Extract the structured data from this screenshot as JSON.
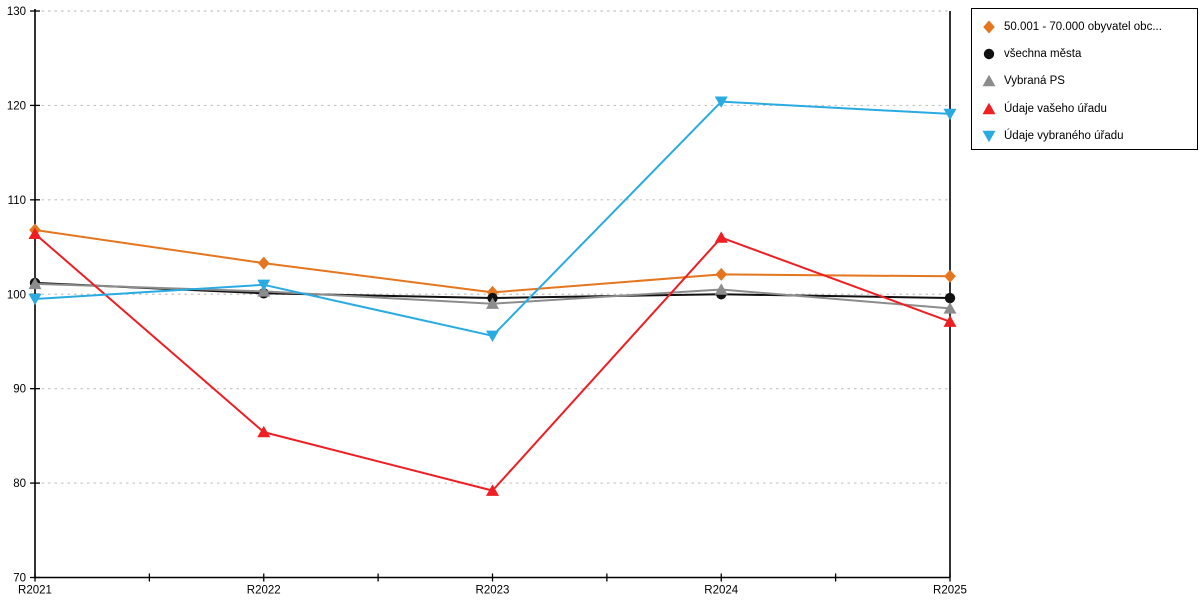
{
  "chart_data": {
    "type": "line",
    "title": "",
    "xlabel": "",
    "ylabel": "",
    "categories": [
      "R2021",
      "R2022",
      "R2023",
      "R2024",
      "R2025"
    ],
    "series": [
      {
        "name": "50.001 - 70.000 obyvatel obc...",
        "marker": "diamond",
        "color": "#E4761F",
        "values": [
          106.8,
          103.3,
          100.2,
          102.1,
          101.9
        ]
      },
      {
        "name": "všechna města",
        "marker": "circle",
        "color": "#111111",
        "values": [
          101.2,
          100.1,
          99.6,
          100.0,
          99.6
        ]
      },
      {
        "name": "Vybraná PS",
        "marker": "triangle-up",
        "color": "#8C8C8C",
        "values": [
          101.1,
          100.3,
          99.0,
          100.5,
          98.5
        ]
      },
      {
        "name": "Údaje vašeho úřadu",
        "marker": "triangle-up",
        "color": "#EE1E23",
        "values": [
          106.4,
          85.4,
          79.2,
          106.0,
          97.1
        ]
      },
      {
        "name": "Údaje vybraného úřadu",
        "marker": "triangle-down",
        "color": "#29ABE2",
        "values": [
          99.5,
          101.0,
          95.6,
          120.4,
          119.1
        ]
      }
    ],
    "ylim": [
      70,
      130
    ],
    "yticks": [
      70,
      80,
      90,
      100,
      110,
      120,
      130
    ],
    "x_minor_ticks_between_categories": 1,
    "grid": "horizontal-dashed",
    "legend_position": "top-right"
  },
  "colors": {
    "background": "#FFFFFF",
    "grid": "#C4C4C4",
    "axis": "#000000",
    "tick_label": "#000000"
  }
}
